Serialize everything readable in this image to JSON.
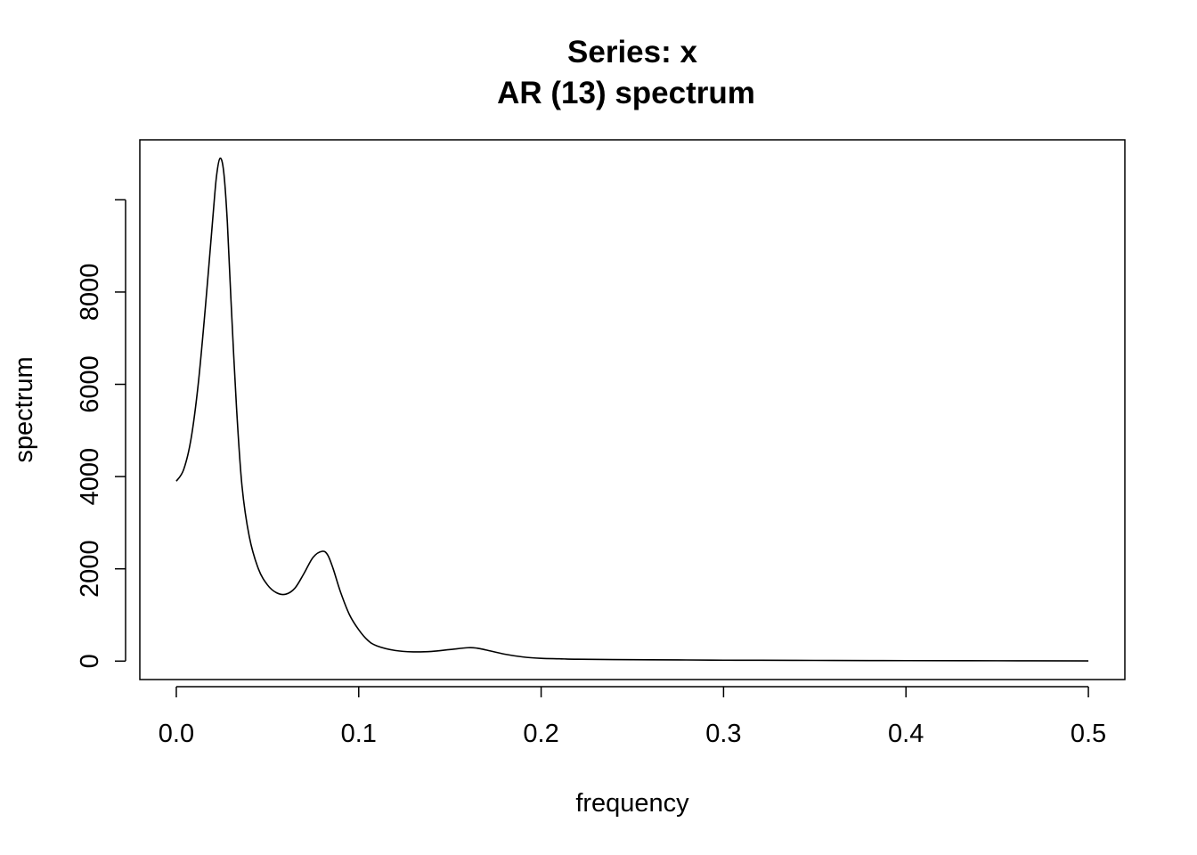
{
  "chart_data": {
    "type": "line",
    "title": "Series: x",
    "subtitle": "AR (13) spectrum",
    "xlabel": "frequency",
    "ylabel": "spectrum",
    "xlim": [
      -0.02,
      0.52
    ],
    "ylim": [
      -400,
      11300
    ],
    "x_ticks": [
      0.0,
      0.1,
      0.2,
      0.3,
      0.4,
      0.5
    ],
    "x_tick_labels": [
      "0.0",
      "0.1",
      "0.2",
      "0.3",
      "0.4",
      "0.5"
    ],
    "y_ticks": [
      0,
      2000,
      4000,
      6000,
      8000,
      10000
    ],
    "y_tick_labels": [
      "0",
      "2000",
      "4000",
      "6000",
      "8000",
      ""
    ],
    "grid": false,
    "legend": "none",
    "series": [
      {
        "x": [
          0.0,
          0.004,
          0.008,
          0.012,
          0.016,
          0.02,
          0.022,
          0.024,
          0.026,
          0.028,
          0.03,
          0.033,
          0.036,
          0.04,
          0.045,
          0.05,
          0.055,
          0.06,
          0.065,
          0.07,
          0.075,
          0.08,
          0.083,
          0.086,
          0.09,
          0.095,
          0.1,
          0.105,
          0.11,
          0.12,
          0.13,
          0.14,
          0.15,
          0.16,
          0.165,
          0.17,
          0.18,
          0.19,
          0.2,
          0.21,
          0.22,
          0.25,
          0.28,
          0.3,
          0.32,
          0.35,
          0.38,
          0.4,
          0.45,
          0.5
        ],
        "y": [
          3900,
          4150,
          4800,
          6000,
          7700,
          9600,
          10500,
          10900,
          10600,
          9500,
          7800,
          5500,
          3800,
          2700,
          2000,
          1650,
          1480,
          1450,
          1580,
          1900,
          2250,
          2380,
          2300,
          2000,
          1500,
          1000,
          680,
          450,
          330,
          230,
          200,
          210,
          250,
          290,
          280,
          240,
          150,
          90,
          60,
          50,
          40,
          30,
          25,
          20,
          18,
          15,
          12,
          10,
          8,
          5
        ]
      }
    ]
  }
}
